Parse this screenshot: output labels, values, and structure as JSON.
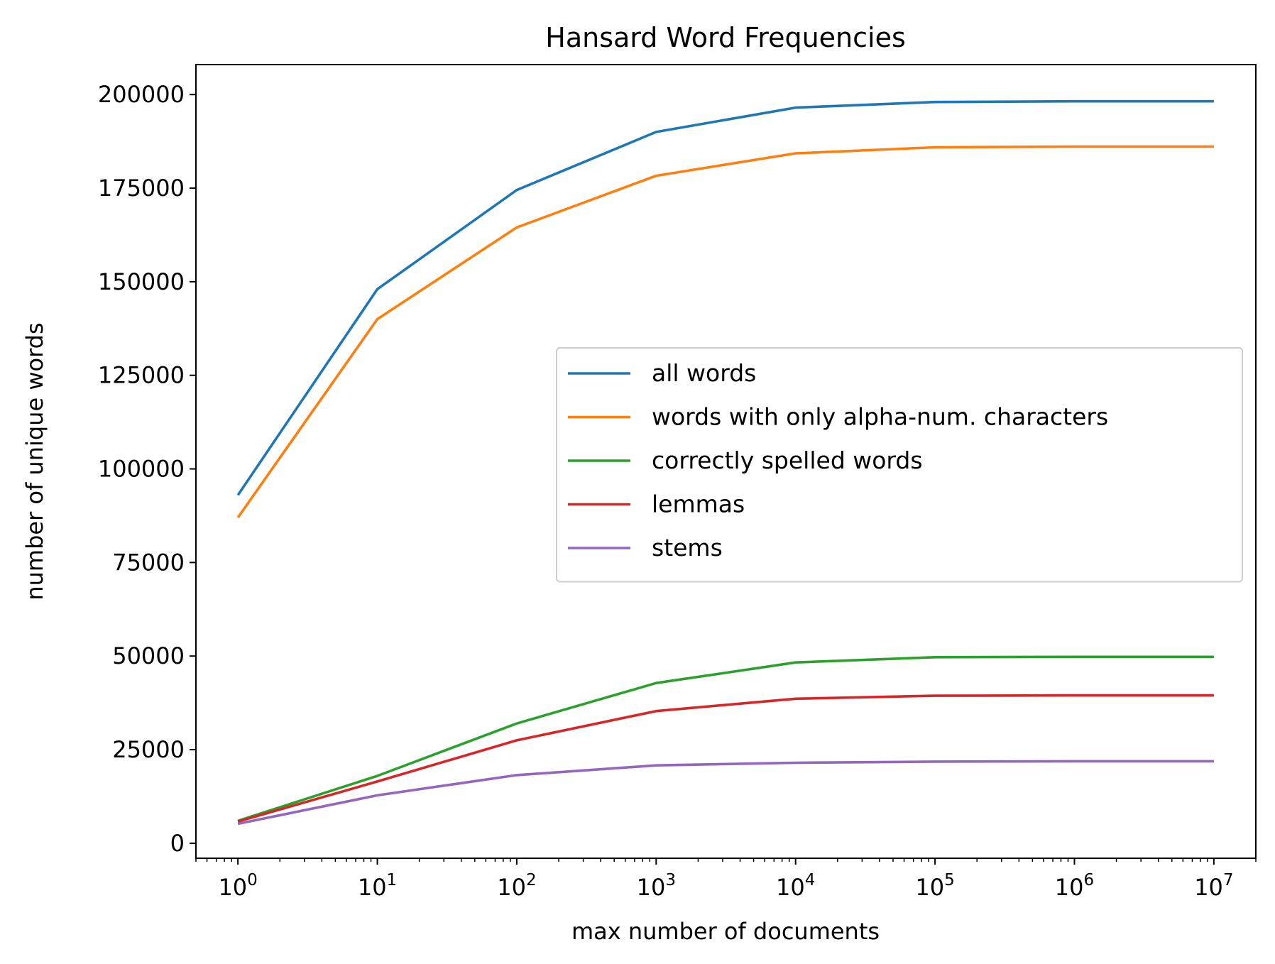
{
  "chart_data": {
    "type": "line",
    "title": "Hansard Word Frequencies",
    "xlabel": "max number of documents",
    "ylabel": "number of unique words",
    "xscale": "log",
    "xlim": [
      0.5,
      20000000
    ],
    "ylim": [
      -4000,
      208000
    ],
    "x": [
      1,
      10,
      100,
      1000,
      10000,
      100000,
      1000000,
      10000000
    ],
    "x_ticks": [
      {
        "base": "10",
        "exp": "0"
      },
      {
        "base": "10",
        "exp": "1"
      },
      {
        "base": "10",
        "exp": "2"
      },
      {
        "base": "10",
        "exp": "3"
      },
      {
        "base": "10",
        "exp": "4"
      },
      {
        "base": "10",
        "exp": "5"
      },
      {
        "base": "10",
        "exp": "6"
      },
      {
        "base": "10",
        "exp": "7"
      }
    ],
    "y_ticks": [
      "0",
      "25000",
      "50000",
      "75000",
      "100000",
      "125000",
      "150000",
      "175000",
      "200000"
    ],
    "y_tick_values": [
      0,
      25000,
      50000,
      75000,
      100000,
      125000,
      150000,
      175000,
      200000
    ],
    "legend_position": "center-right",
    "grid": false,
    "series": [
      {
        "name": "all words",
        "color": "#1f77b4",
        "values": [
          93000,
          148000,
          174500,
          190000,
          196500,
          198000,
          198200,
          198200
        ]
      },
      {
        "name": "words with only alpha-num. characters",
        "color": "#ff7f0e",
        "values": [
          87000,
          140000,
          164500,
          178300,
          184300,
          185900,
          186100,
          186100
        ]
      },
      {
        "name": "correctly spelled words",
        "color": "#2ca02c",
        "values": [
          6000,
          18000,
          32000,
          42800,
          48300,
          49700,
          49800,
          49800
        ]
      },
      {
        "name": "lemmas",
        "color": "#d62728",
        "values": [
          5800,
          16500,
          27500,
          35300,
          38600,
          39400,
          39500,
          39500
        ]
      },
      {
        "name": "stems",
        "color": "#9467bd",
        "values": [
          5200,
          12800,
          18200,
          20800,
          21500,
          21800,
          21900,
          21900
        ]
      }
    ]
  }
}
